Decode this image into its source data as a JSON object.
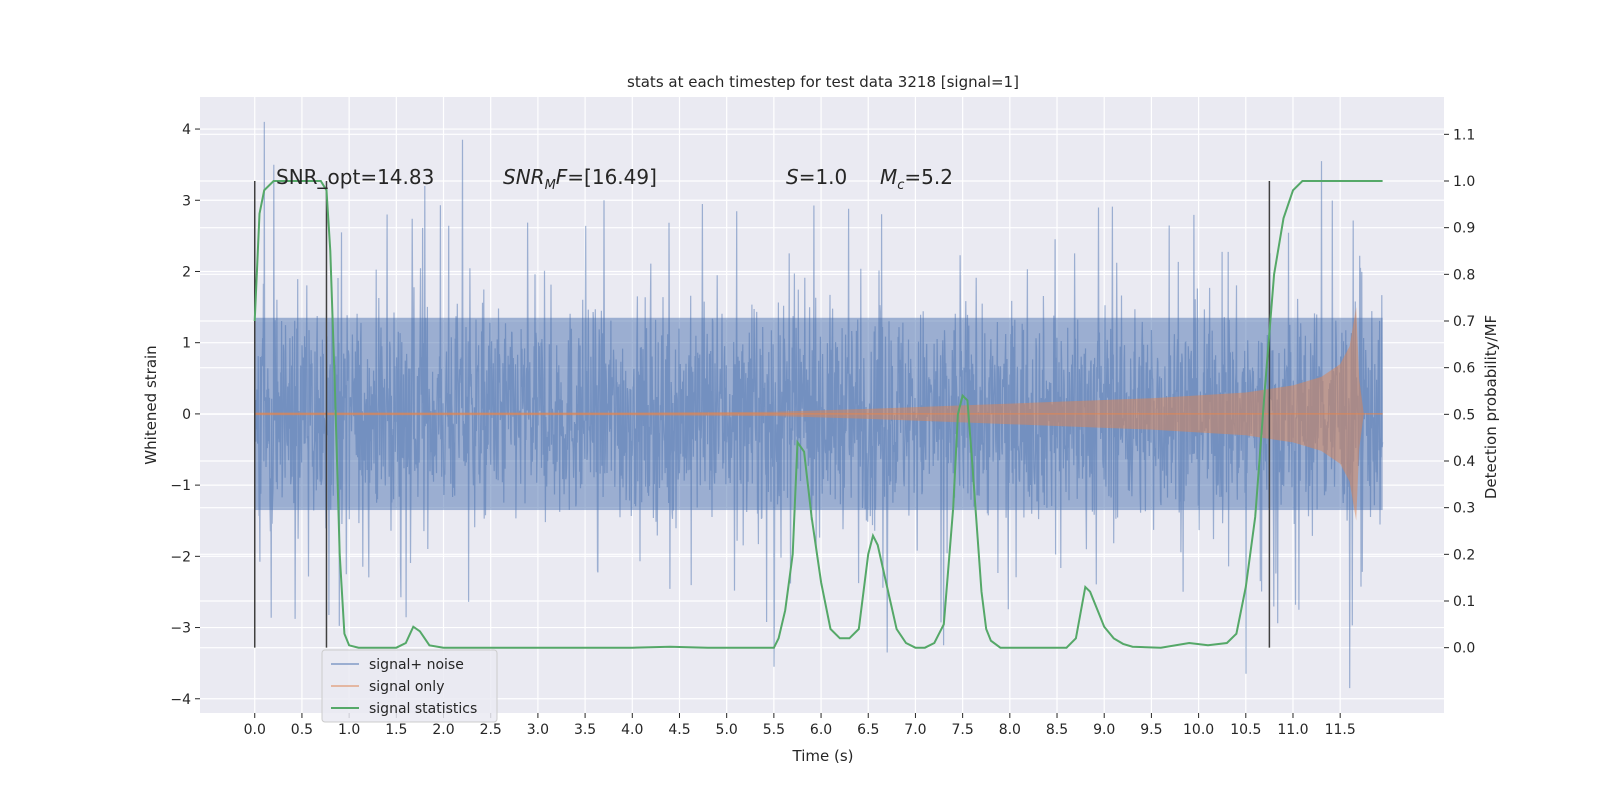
{
  "chart_data": {
    "type": "line",
    "title": "stats at each timestep for test data 3218 [signal=1]",
    "xlabel": "Time (s)",
    "ylabel": "Whitened strain",
    "y2label": "Detection probability/MF",
    "xlim": [
      -0.58,
      12.6
    ],
    "ylim": [
      -4.2,
      4.45
    ],
    "y2lim": [
      -0.14,
      1.18
    ],
    "x_ticks": [
      "0.0",
      "0.5",
      "1.0",
      "1.5",
      "2.0",
      "2.5",
      "3.0",
      "3.5",
      "4.0",
      "4.5",
      "5.0",
      "5.5",
      "6.0",
      "6.5",
      "7.0",
      "7.5",
      "8.0",
      "8.5",
      "9.0",
      "9.5",
      "10.0",
      "10.5",
      "11.0",
      "11.5"
    ],
    "y_ticks": [
      "4",
      "3",
      "2",
      "1",
      "0",
      "−1",
      "−2",
      "−3",
      "−4"
    ],
    "y2_ticks": [
      "1.1",
      "1.0",
      "0.9",
      "0.8",
      "0.7",
      "0.6",
      "0.5",
      "0.4",
      "0.3",
      "0.2",
      "0.1",
      "0.0"
    ],
    "grid": true,
    "background": "#eaeaf2",
    "series": [
      {
        "name": "signal+ noise",
        "axis": "left",
        "color": "#4c72b0",
        "opacity": 0.5,
        "x_range": [
          0.0,
          11.95
        ],
        "typical_range": [
          -1.35,
          1.35
        ],
        "peaks": [
          {
            "x": 0.1,
            "y": 4.1
          },
          {
            "x": 0.2,
            "y": 3.5
          },
          {
            "x": 1.4,
            "y": 2.8
          },
          {
            "x": 2.2,
            "y": 3.85
          },
          {
            "x": 1.8,
            "y": 3.2
          },
          {
            "x": 3.7,
            "y": 3.0
          },
          {
            "x": 5.5,
            "y": -3.55
          },
          {
            "x": 6.7,
            "y": -3.35
          },
          {
            "x": 7.3,
            "y": -3.25
          },
          {
            "x": 10.5,
            "y": -3.65
          },
          {
            "x": 11.3,
            "y": 3.55
          },
          {
            "x": 11.6,
            "y": -3.85
          }
        ]
      },
      {
        "name": "signal only",
        "axis": "left",
        "color": "#dd8452",
        "opacity": 0.5,
        "envelope": [
          {
            "x": 0.0,
            "y": 0.02
          },
          {
            "x": 4.0,
            "y": 0.02
          },
          {
            "x": 5.5,
            "y": 0.03
          },
          {
            "x": 6.5,
            "y": 0.07
          },
          {
            "x": 7.5,
            "y": 0.12
          },
          {
            "x": 8.5,
            "y": 0.17
          },
          {
            "x": 9.5,
            "y": 0.22
          },
          {
            "x": 10.5,
            "y": 0.3
          },
          {
            "x": 11.0,
            "y": 0.4
          },
          {
            "x": 11.3,
            "y": 0.52
          },
          {
            "x": 11.5,
            "y": 0.7
          },
          {
            "x": 11.6,
            "y": 0.95
          },
          {
            "x": 11.67,
            "y": 1.5
          },
          {
            "x": 11.7,
            "y": 0.5
          },
          {
            "x": 11.75,
            "y": 0.0
          },
          {
            "x": 11.95,
            "y": 0.0
          }
        ]
      },
      {
        "name": "signal statistics",
        "axis": "right",
        "color": "#55a868",
        "x": [
          0.0,
          0.05,
          0.1,
          0.2,
          0.3,
          0.5,
          0.7,
          0.76,
          0.8,
          0.85,
          0.9,
          0.95,
          1.0,
          1.1,
          1.3,
          1.5,
          1.6,
          1.68,
          1.75,
          1.85,
          2.0,
          2.5,
          3.0,
          3.5,
          4.0,
          4.4,
          4.8,
          5.2,
          5.5,
          5.55,
          5.62,
          5.7,
          5.75,
          5.82,
          5.9,
          6.0,
          6.1,
          6.2,
          6.3,
          6.4,
          6.45,
          6.5,
          6.55,
          6.6,
          6.7,
          6.8,
          6.9,
          7.0,
          7.1,
          7.2,
          7.3,
          7.4,
          7.45,
          7.5,
          7.55,
          7.6,
          7.7,
          7.75,
          7.8,
          7.9,
          8.0,
          8.3,
          8.6,
          8.7,
          8.8,
          8.85,
          8.95,
          9.0,
          9.1,
          9.2,
          9.3,
          9.6,
          9.9,
          10.1,
          10.3,
          10.4,
          10.5,
          10.6,
          10.7,
          10.8,
          10.9,
          11.0,
          11.1,
          11.3,
          11.6,
          11.95
        ],
        "y": [
          0.7,
          0.93,
          0.98,
          1.0,
          1.0,
          1.0,
          1.0,
          0.98,
          0.85,
          0.55,
          0.2,
          0.03,
          0.005,
          0.0,
          0.0,
          0.0,
          0.01,
          0.045,
          0.035,
          0.005,
          0.0,
          0.0,
          0.0,
          0.0,
          0.0,
          0.002,
          0.0,
          0.0,
          0.0,
          0.02,
          0.08,
          0.2,
          0.44,
          0.42,
          0.28,
          0.14,
          0.04,
          0.02,
          0.02,
          0.04,
          0.12,
          0.2,
          0.24,
          0.22,
          0.13,
          0.04,
          0.01,
          0.0,
          0.0,
          0.01,
          0.05,
          0.3,
          0.5,
          0.54,
          0.53,
          0.4,
          0.12,
          0.04,
          0.015,
          0.0,
          0.0,
          0.0,
          0.0,
          0.02,
          0.13,
          0.12,
          0.07,
          0.045,
          0.02,
          0.008,
          0.002,
          0.0,
          0.01,
          0.005,
          0.01,
          0.03,
          0.13,
          0.28,
          0.55,
          0.8,
          0.92,
          0.98,
          1.0,
          1.0,
          1.0,
          1.0
        ]
      }
    ],
    "vertical_lines": [
      0.0,
      0.76,
      10.75
    ],
    "vertical_line_color": "#404040",
    "annotations": {
      "snr_opt": "SNR_opt=14.83",
      "snr_mf_base": "SNR",
      "snr_mf_sub": "M",
      "snr_mf_rest": "F=[16.49]",
      "s_label": "S",
      "s_value": "=1.0",
      "mc_label": "M",
      "mc_sub": "c",
      "mc_value": "=5.2"
    },
    "legend": {
      "placement": "lower-left",
      "entries": [
        {
          "label": "signal+ noise",
          "color": "#4c72b0",
          "opacity": 0.5
        },
        {
          "label": "signal only",
          "color": "#dd8452",
          "opacity": 0.5
        },
        {
          "label": "signal statistics",
          "color": "#55a868",
          "opacity": 1
        }
      ]
    }
  }
}
